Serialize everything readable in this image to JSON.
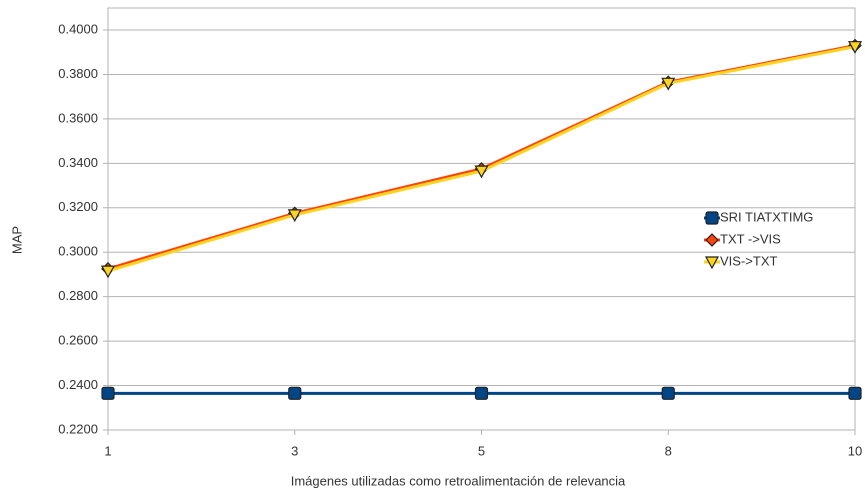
{
  "chart_data": {
    "type": "line",
    "x_label": "Imágenes utilizadas como retroalimentación de relevancia",
    "y_label": "MAP",
    "categories": [
      "1",
      "3",
      "5",
      "8",
      "10"
    ],
    "ylim": [
      0.22,
      0.4
    ],
    "yticks": [
      {
        "value": 0.22,
        "label": "0.2200"
      },
      {
        "value": 0.24,
        "label": "0.2400"
      },
      {
        "value": 0.26,
        "label": "0.2600"
      },
      {
        "value": 0.28,
        "label": "0.2800"
      },
      {
        "value": 0.3,
        "label": "0.3000"
      },
      {
        "value": 0.32,
        "label": "0.3200"
      },
      {
        "value": 0.34,
        "label": "0.3400"
      },
      {
        "value": 0.36,
        "label": "0.3600"
      },
      {
        "value": 0.38,
        "label": "0.3800"
      },
      {
        "value": 0.4,
        "label": "0.4000"
      }
    ],
    "grid": true,
    "legend": "right",
    "series": [
      {
        "name": "SRI TIATXTIMG",
        "color": "#004586",
        "marker": "square",
        "values": [
          0.2365,
          0.2365,
          0.2365,
          0.2365,
          0.2365
        ]
      },
      {
        "name": "TXT ->VIS",
        "color": "#ff420e",
        "marker": "diamond",
        "values": [
          0.2925,
          0.3175,
          0.3375,
          0.3765,
          0.393
        ]
      },
      {
        "name": "VIS->TXT",
        "color": "#ffd320",
        "marker": "triangle-down",
        "values": [
          0.2915,
          0.3168,
          0.3365,
          0.376,
          0.3925
        ]
      }
    ]
  }
}
